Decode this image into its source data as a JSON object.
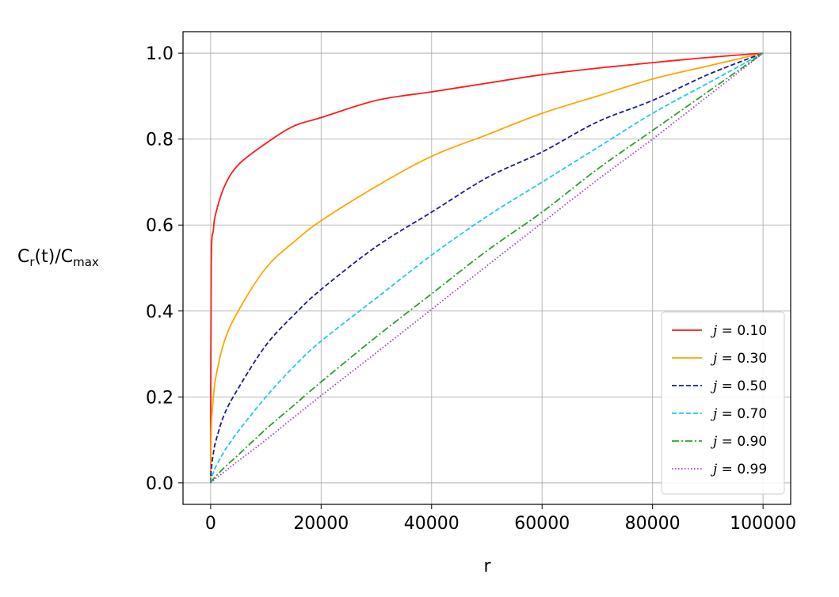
{
  "chart_data": {
    "type": "line",
    "xlabel": "r",
    "ylabel": {
      "main": "C",
      "sub1": "r",
      "mid": "(t)/C",
      "sub2": "max"
    },
    "xlim": [
      -5000,
      105000
    ],
    "ylim": [
      -0.05,
      1.05
    ],
    "x_ticks": [
      0,
      20000,
      40000,
      60000,
      80000,
      100000
    ],
    "x_tick_labels": [
      "0",
      "20000",
      "40000",
      "60000",
      "80000",
      "100000"
    ],
    "y_ticks": [
      0.0,
      0.2,
      0.4,
      0.6,
      0.8,
      1.0
    ],
    "y_tick_labels": [
      "0.0",
      "0.2",
      "0.4",
      "0.6",
      "0.8",
      "1.0"
    ],
    "grid": true,
    "legend_position": "lower-right",
    "x": [
      0,
      100,
      500,
      1000,
      2500,
      5000,
      10000,
      15000,
      20000,
      30000,
      40000,
      50000,
      60000,
      70000,
      80000,
      90000,
      100000
    ],
    "series": [
      {
        "name": "j = 0.10",
        "legend_var": "j",
        "legend_value": "= 0.10",
        "color": "#ff1a1a",
        "dash": "solid",
        "values": [
          0.0,
          0.5,
          0.59,
          0.63,
          0.69,
          0.74,
          0.79,
          0.83,
          0.85,
          0.89,
          0.91,
          0.93,
          0.95,
          0.965,
          0.978,
          0.99,
          1.0
        ]
      },
      {
        "name": "j = 0.30",
        "legend_var": "j",
        "legend_value": "= 0.30",
        "color": "#ffa500",
        "dash": "solid",
        "values": [
          0.0,
          0.125,
          0.2,
          0.25,
          0.33,
          0.4,
          0.5,
          0.56,
          0.61,
          0.69,
          0.76,
          0.81,
          0.86,
          0.9,
          0.94,
          0.97,
          1.0
        ]
      },
      {
        "name": "j = 0.50",
        "legend_var": "j",
        "legend_value": "= 0.50",
        "color": "#1a1a99",
        "dash": "dashed",
        "values": [
          0.0,
          0.03,
          0.07,
          0.1,
          0.16,
          0.22,
          0.32,
          0.39,
          0.45,
          0.55,
          0.63,
          0.71,
          0.77,
          0.84,
          0.89,
          0.95,
          1.0
        ]
      },
      {
        "name": "j = 0.70",
        "legend_var": "j",
        "legend_value": "= 0.70",
        "color": "#1ec8f0",
        "dash": "dashed",
        "values": [
          0.0,
          0.008,
          0.024,
          0.039,
          0.074,
          0.12,
          0.2,
          0.27,
          0.33,
          0.43,
          0.53,
          0.62,
          0.7,
          0.78,
          0.86,
          0.93,
          1.0
        ]
      },
      {
        "name": "j = 0.90",
        "legend_var": "j",
        "legend_value": "= 0.90",
        "color": "#2ca02c",
        "dash": "dashdot",
        "values": [
          0.0,
          0.003,
          0.009,
          0.016,
          0.036,
          0.065,
          0.125,
          0.18,
          0.235,
          0.34,
          0.44,
          0.54,
          0.63,
          0.73,
          0.82,
          0.91,
          1.0
        ]
      },
      {
        "name": "j = 0.99",
        "legend_var": "j",
        "legend_value": "= 0.99",
        "color": "#a040c0",
        "dash": "dotted",
        "values": [
          0.0,
          0.001,
          0.0055,
          0.011,
          0.026,
          0.051,
          0.1,
          0.152,
          0.203,
          0.303,
          0.404,
          0.505,
          0.605,
          0.705,
          0.8,
          0.9,
          1.0
        ]
      }
    ]
  }
}
